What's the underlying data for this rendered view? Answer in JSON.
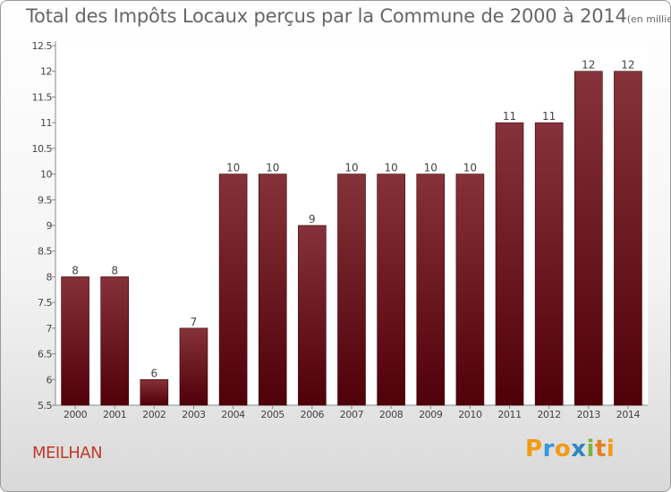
{
  "title": "Total des Impôts Locaux perçus par la Commune de 2000 à 2014",
  "unit_note": "(en milliers d'€)",
  "commune": "MEILHAN",
  "logo": "Proxiti",
  "colors": {
    "bar": "#7a0c14",
    "bar_dark": "#4e0007",
    "commune_text": "#c0392b"
  },
  "chart_data": {
    "type": "bar",
    "title": "Total des Impôts Locaux perçus par la Commune de 2000 à 2014",
    "ylabel": "",
    "xlabel": "",
    "categories": [
      "2000",
      "2001",
      "2002",
      "2003",
      "2004",
      "2005",
      "2006",
      "2007",
      "2008",
      "2009",
      "2010",
      "2011",
      "2012",
      "2013",
      "2014"
    ],
    "values": [
      8,
      8,
      6,
      7,
      10,
      10,
      9,
      10,
      10,
      10,
      10,
      11,
      11,
      12,
      12
    ],
    "value_labels": [
      "8",
      "8",
      "6",
      "7",
      "10",
      "10",
      "9",
      "10",
      "10",
      "10",
      "10",
      "11",
      "11",
      "12",
      "12"
    ],
    "ylim": [
      5.5,
      12.5
    ],
    "yticks": [
      5.5,
      6,
      6.5,
      7,
      7.5,
      8,
      8.5,
      9,
      9.5,
      10,
      10.5,
      11,
      11.5,
      12,
      12.5
    ],
    "ytick_labels": [
      "5.5",
      "6",
      "6.5",
      "7",
      "7.5",
      "8",
      "8.5",
      "9",
      "9.5",
      "10",
      "10.5",
      "11",
      "11.5",
      "12",
      "12.5"
    ],
    "grid": false
  }
}
